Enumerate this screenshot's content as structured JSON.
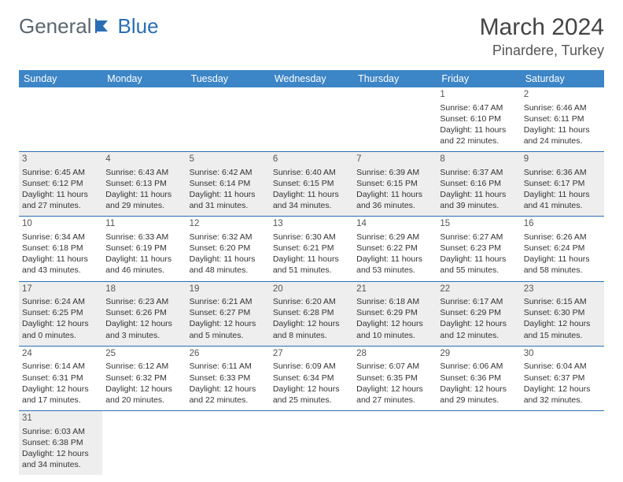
{
  "brand": {
    "part1": "General",
    "part2": "Blue"
  },
  "title": {
    "month": "March 2024",
    "location": "Pinardere, Turkey"
  },
  "colors": {
    "header_bg": "#3c85c6",
    "row_border": "#2a6fb5",
    "shade_bg": "#eeeeee",
    "brand_gray": "#5c6770",
    "brand_blue": "#2a6fb5"
  },
  "weekdays": [
    "Sunday",
    "Monday",
    "Tuesday",
    "Wednesday",
    "Thursday",
    "Friday",
    "Saturday"
  ],
  "weeks": [
    [
      null,
      null,
      null,
      null,
      null,
      {
        "d": "1",
        "sr": "Sunrise: 6:47 AM",
        "ss": "Sunset: 6:10 PM",
        "dl1": "Daylight: 11 hours",
        "dl2": "and 22 minutes."
      },
      {
        "d": "2",
        "sr": "Sunrise: 6:46 AM",
        "ss": "Sunset: 6:11 PM",
        "dl1": "Daylight: 11 hours",
        "dl2": "and 24 minutes."
      }
    ],
    [
      {
        "d": "3",
        "sr": "Sunrise: 6:45 AM",
        "ss": "Sunset: 6:12 PM",
        "dl1": "Daylight: 11 hours",
        "dl2": "and 27 minutes."
      },
      {
        "d": "4",
        "sr": "Sunrise: 6:43 AM",
        "ss": "Sunset: 6:13 PM",
        "dl1": "Daylight: 11 hours",
        "dl2": "and 29 minutes."
      },
      {
        "d": "5",
        "sr": "Sunrise: 6:42 AM",
        "ss": "Sunset: 6:14 PM",
        "dl1": "Daylight: 11 hours",
        "dl2": "and 31 minutes."
      },
      {
        "d": "6",
        "sr": "Sunrise: 6:40 AM",
        "ss": "Sunset: 6:15 PM",
        "dl1": "Daylight: 11 hours",
        "dl2": "and 34 minutes."
      },
      {
        "d": "7",
        "sr": "Sunrise: 6:39 AM",
        "ss": "Sunset: 6:15 PM",
        "dl1": "Daylight: 11 hours",
        "dl2": "and 36 minutes."
      },
      {
        "d": "8",
        "sr": "Sunrise: 6:37 AM",
        "ss": "Sunset: 6:16 PM",
        "dl1": "Daylight: 11 hours",
        "dl2": "and 39 minutes."
      },
      {
        "d": "9",
        "sr": "Sunrise: 6:36 AM",
        "ss": "Sunset: 6:17 PM",
        "dl1": "Daylight: 11 hours",
        "dl2": "and 41 minutes."
      }
    ],
    [
      {
        "d": "10",
        "sr": "Sunrise: 6:34 AM",
        "ss": "Sunset: 6:18 PM",
        "dl1": "Daylight: 11 hours",
        "dl2": "and 43 minutes."
      },
      {
        "d": "11",
        "sr": "Sunrise: 6:33 AM",
        "ss": "Sunset: 6:19 PM",
        "dl1": "Daylight: 11 hours",
        "dl2": "and 46 minutes."
      },
      {
        "d": "12",
        "sr": "Sunrise: 6:32 AM",
        "ss": "Sunset: 6:20 PM",
        "dl1": "Daylight: 11 hours",
        "dl2": "and 48 minutes."
      },
      {
        "d": "13",
        "sr": "Sunrise: 6:30 AM",
        "ss": "Sunset: 6:21 PM",
        "dl1": "Daylight: 11 hours",
        "dl2": "and 51 minutes."
      },
      {
        "d": "14",
        "sr": "Sunrise: 6:29 AM",
        "ss": "Sunset: 6:22 PM",
        "dl1": "Daylight: 11 hours",
        "dl2": "and 53 minutes."
      },
      {
        "d": "15",
        "sr": "Sunrise: 6:27 AM",
        "ss": "Sunset: 6:23 PM",
        "dl1": "Daylight: 11 hours",
        "dl2": "and 55 minutes."
      },
      {
        "d": "16",
        "sr": "Sunrise: 6:26 AM",
        "ss": "Sunset: 6:24 PM",
        "dl1": "Daylight: 11 hours",
        "dl2": "and 58 minutes."
      }
    ],
    [
      {
        "d": "17",
        "sr": "Sunrise: 6:24 AM",
        "ss": "Sunset: 6:25 PM",
        "dl1": "Daylight: 12 hours",
        "dl2": "and 0 minutes."
      },
      {
        "d": "18",
        "sr": "Sunrise: 6:23 AM",
        "ss": "Sunset: 6:26 PM",
        "dl1": "Daylight: 12 hours",
        "dl2": "and 3 minutes."
      },
      {
        "d": "19",
        "sr": "Sunrise: 6:21 AM",
        "ss": "Sunset: 6:27 PM",
        "dl1": "Daylight: 12 hours",
        "dl2": "and 5 minutes."
      },
      {
        "d": "20",
        "sr": "Sunrise: 6:20 AM",
        "ss": "Sunset: 6:28 PM",
        "dl1": "Daylight: 12 hours",
        "dl2": "and 8 minutes."
      },
      {
        "d": "21",
        "sr": "Sunrise: 6:18 AM",
        "ss": "Sunset: 6:29 PM",
        "dl1": "Daylight: 12 hours",
        "dl2": "and 10 minutes."
      },
      {
        "d": "22",
        "sr": "Sunrise: 6:17 AM",
        "ss": "Sunset: 6:29 PM",
        "dl1": "Daylight: 12 hours",
        "dl2": "and 12 minutes."
      },
      {
        "d": "23",
        "sr": "Sunrise: 6:15 AM",
        "ss": "Sunset: 6:30 PM",
        "dl1": "Daylight: 12 hours",
        "dl2": "and 15 minutes."
      }
    ],
    [
      {
        "d": "24",
        "sr": "Sunrise: 6:14 AM",
        "ss": "Sunset: 6:31 PM",
        "dl1": "Daylight: 12 hours",
        "dl2": "and 17 minutes."
      },
      {
        "d": "25",
        "sr": "Sunrise: 6:12 AM",
        "ss": "Sunset: 6:32 PM",
        "dl1": "Daylight: 12 hours",
        "dl2": "and 20 minutes."
      },
      {
        "d": "26",
        "sr": "Sunrise: 6:11 AM",
        "ss": "Sunset: 6:33 PM",
        "dl1": "Daylight: 12 hours",
        "dl2": "and 22 minutes."
      },
      {
        "d": "27",
        "sr": "Sunrise: 6:09 AM",
        "ss": "Sunset: 6:34 PM",
        "dl1": "Daylight: 12 hours",
        "dl2": "and 25 minutes."
      },
      {
        "d": "28",
        "sr": "Sunrise: 6:07 AM",
        "ss": "Sunset: 6:35 PM",
        "dl1": "Daylight: 12 hours",
        "dl2": "and 27 minutes."
      },
      {
        "d": "29",
        "sr": "Sunrise: 6:06 AM",
        "ss": "Sunset: 6:36 PM",
        "dl1": "Daylight: 12 hours",
        "dl2": "and 29 minutes."
      },
      {
        "d": "30",
        "sr": "Sunrise: 6:04 AM",
        "ss": "Sunset: 6:37 PM",
        "dl1": "Daylight: 12 hours",
        "dl2": "and 32 minutes."
      }
    ],
    [
      {
        "d": "31",
        "sr": "Sunrise: 6:03 AM",
        "ss": "Sunset: 6:38 PM",
        "dl1": "Daylight: 12 hours",
        "dl2": "and 34 minutes."
      },
      null,
      null,
      null,
      null,
      null,
      null
    ]
  ]
}
